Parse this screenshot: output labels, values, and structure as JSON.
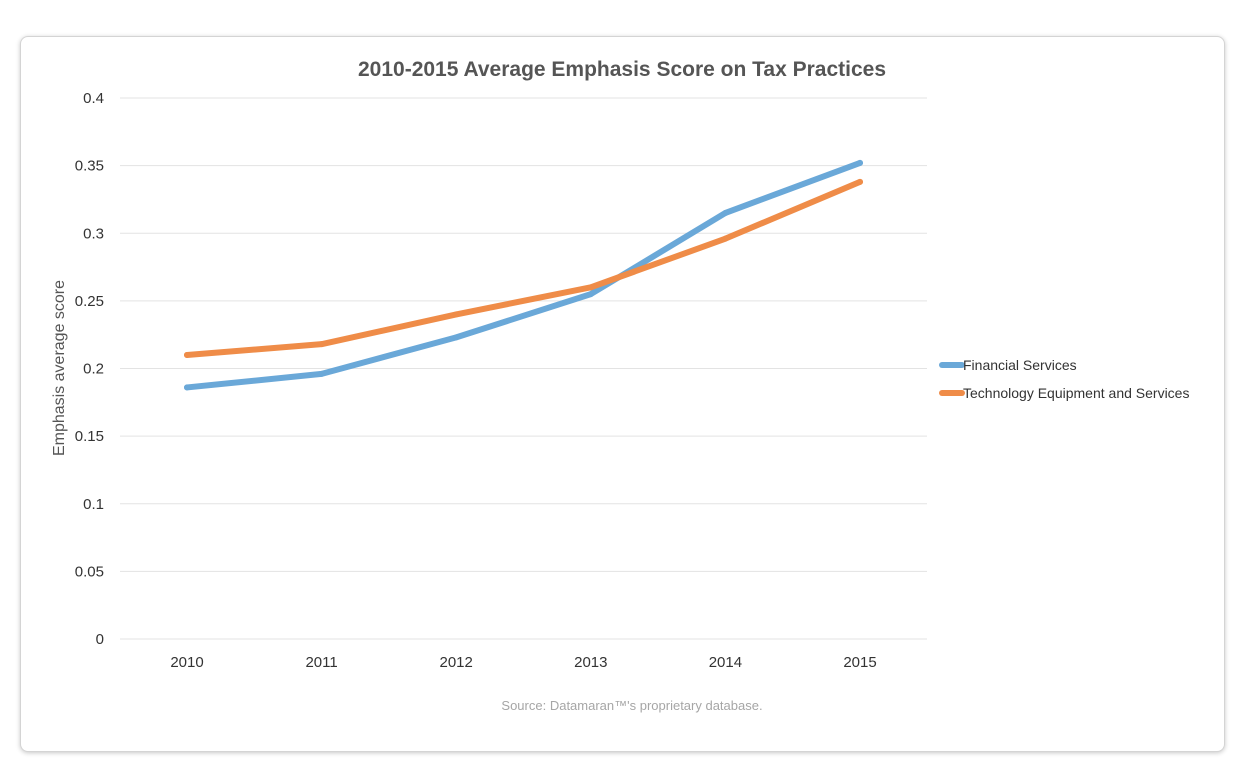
{
  "chart_data": {
    "type": "line",
    "title": "2010-2015 Average Emphasis Score on Tax Practices",
    "ylabel": "Emphasis average score",
    "xlabel": "",
    "categories": [
      "2010",
      "2011",
      "2012",
      "2013",
      "2014",
      "2015"
    ],
    "ylim": [
      0,
      0.4
    ],
    "yticks": [
      "0",
      "0.05",
      "0.1",
      "0.15",
      "0.2",
      "0.25",
      "0.3",
      "0.35",
      "0.4"
    ],
    "grid": true,
    "legend_position": "right",
    "series": [
      {
        "name": "Financial Services",
        "color": "#6aa8d8",
        "values": [
          0.186,
          0.196,
          0.223,
          0.255,
          0.315,
          0.352
        ]
      },
      {
        "name": "Technology Equipment and Services",
        "color": "#ef8c48",
        "values": [
          0.21,
          0.218,
          0.24,
          0.26,
          0.296,
          0.338
        ]
      }
    ],
    "source": "Source: Datamaran™'s proprietary database."
  }
}
